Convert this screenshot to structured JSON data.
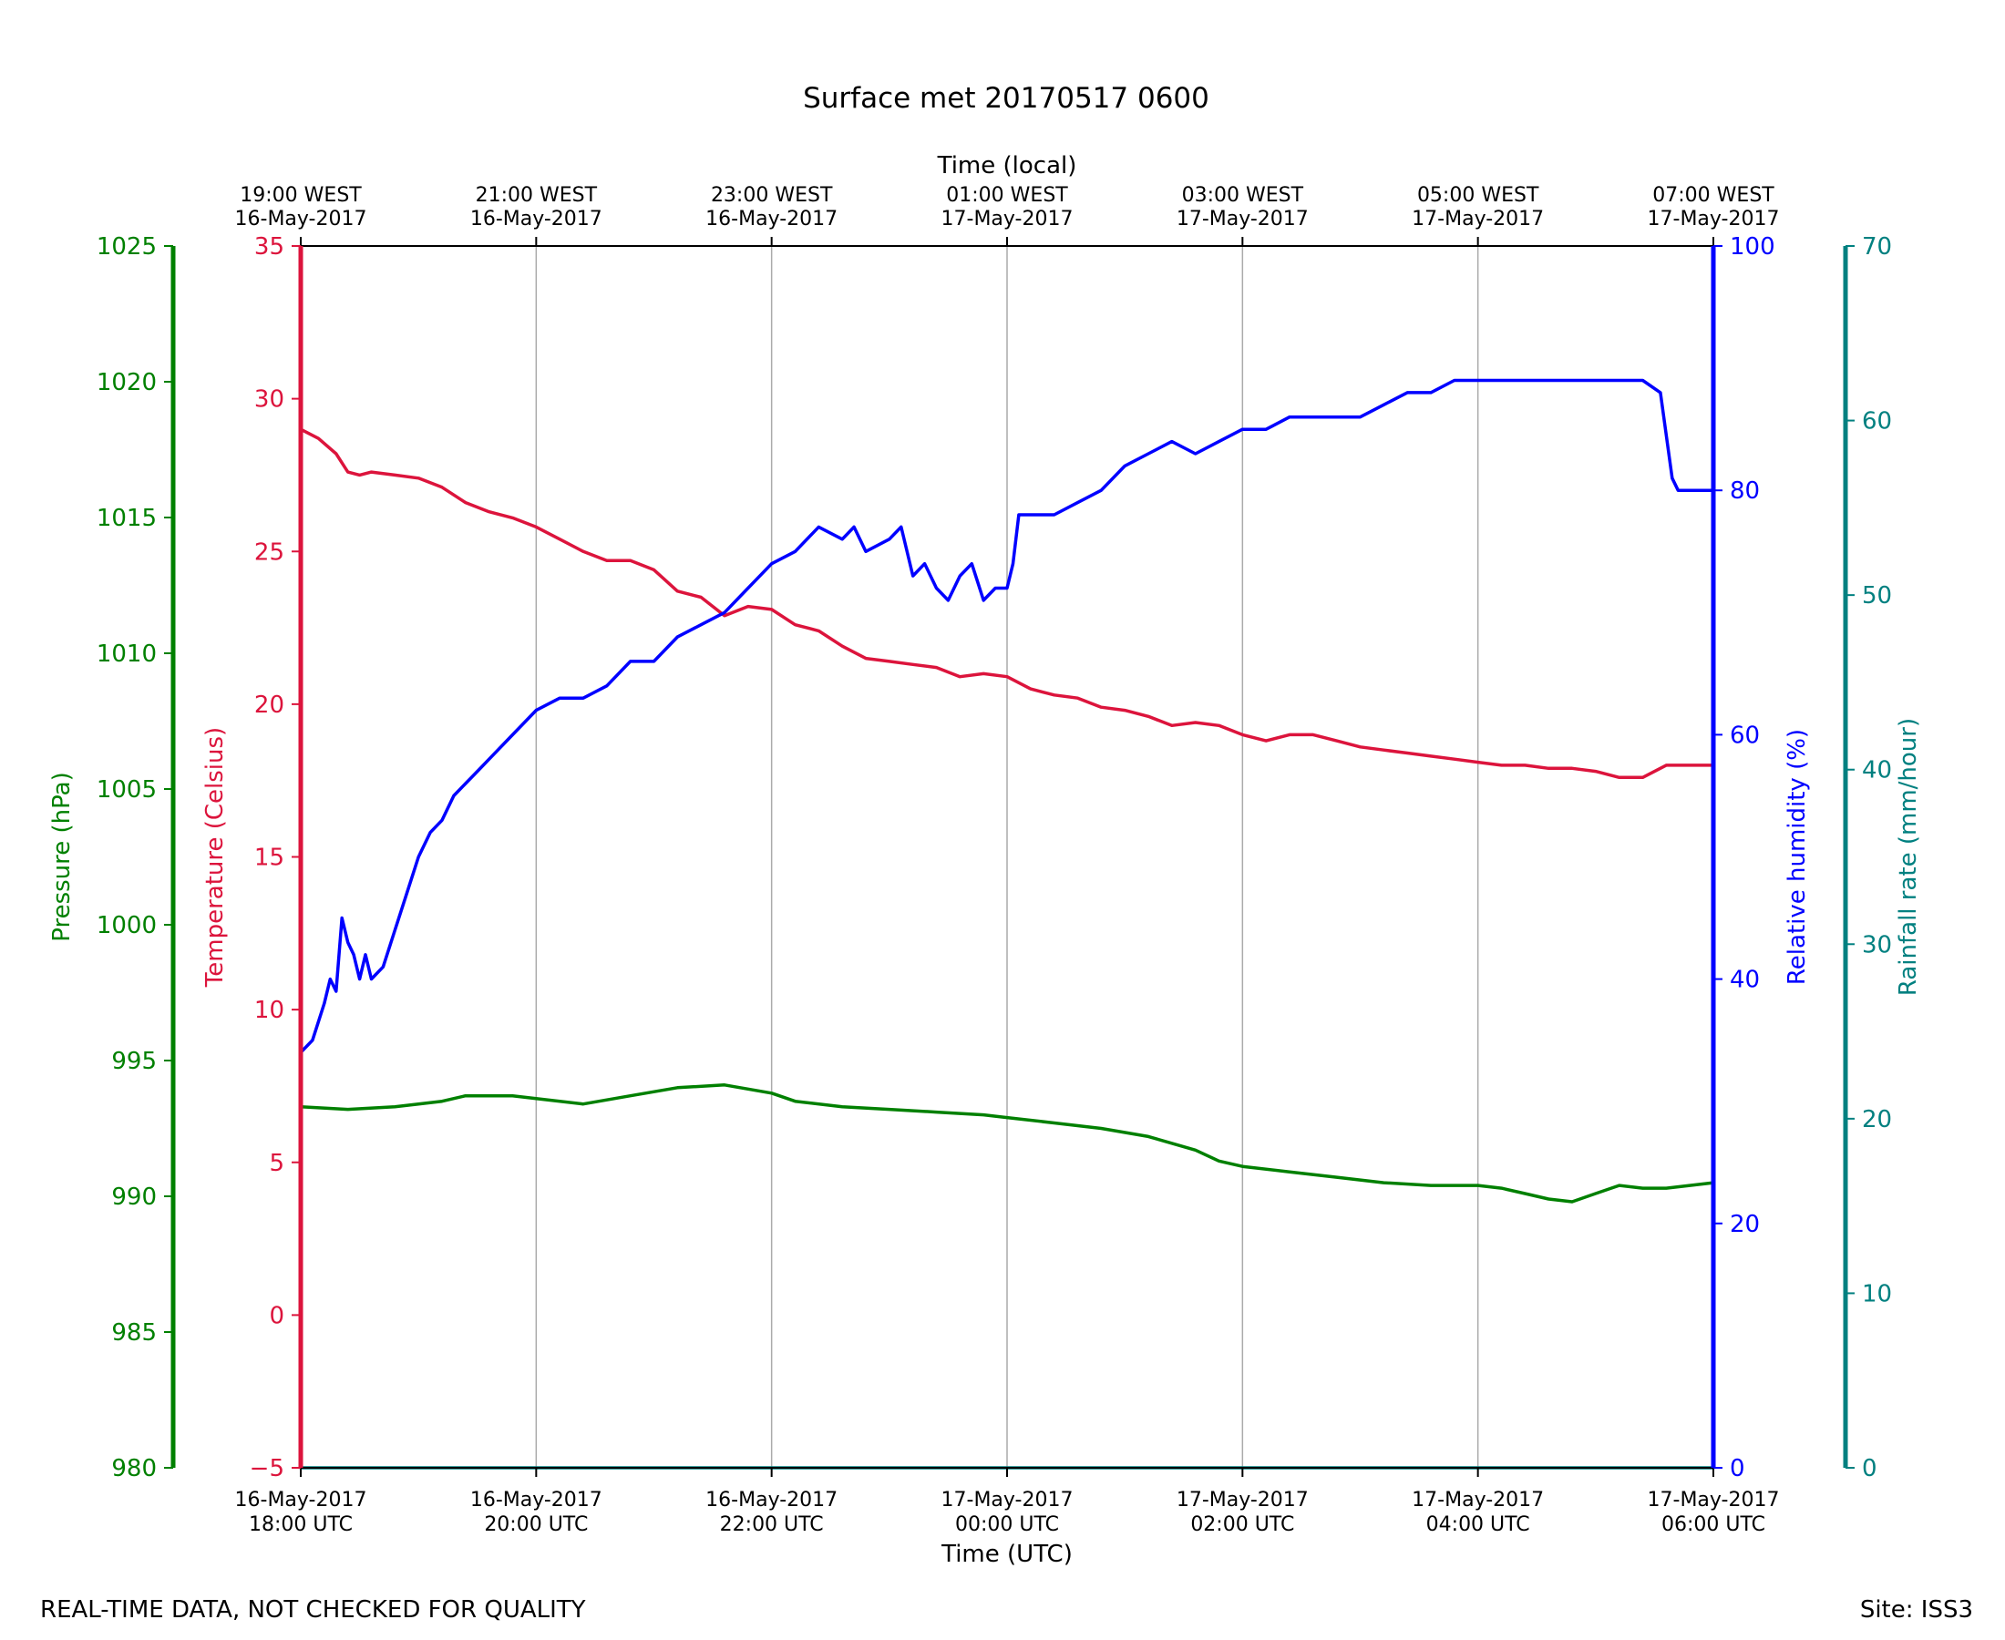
{
  "chart_data": {
    "type": "line",
    "title": "Surface met 20170517 0600",
    "footer_left": "REAL-TIME DATA, NOT CHECKED FOR QUALITY",
    "footer_right": "Site: ISS3",
    "x_bottom": {
      "label": "Time (UTC)",
      "range_hours": [
        0,
        12
      ],
      "ticks": [
        {
          "hour": 0,
          "line1": "16-May-2017",
          "line2": "18:00 UTC"
        },
        {
          "hour": 2,
          "line1": "16-May-2017",
          "line2": "20:00 UTC"
        },
        {
          "hour": 4,
          "line1": "16-May-2017",
          "line2": "22:00 UTC"
        },
        {
          "hour": 6,
          "line1": "17-May-2017",
          "line2": "00:00 UTC"
        },
        {
          "hour": 8,
          "line1": "17-May-2017",
          "line2": "02:00 UTC"
        },
        {
          "hour": 10,
          "line1": "17-May-2017",
          "line2": "04:00 UTC"
        },
        {
          "hour": 12,
          "line1": "17-May-2017",
          "line2": "06:00 UTC"
        }
      ]
    },
    "x_top": {
      "label": "Time (local)",
      "ticks": [
        {
          "hour": 0,
          "line1": "19:00 WEST",
          "line2": "16-May-2017"
        },
        {
          "hour": 2,
          "line1": "21:00 WEST",
          "line2": "16-May-2017"
        },
        {
          "hour": 4,
          "line1": "23:00 WEST",
          "line2": "16-May-2017"
        },
        {
          "hour": 6,
          "line1": "01:00 WEST",
          "line2": "17-May-2017"
        },
        {
          "hour": 8,
          "line1": "03:00 WEST",
          "line2": "17-May-2017"
        },
        {
          "hour": 10,
          "line1": "05:00 WEST",
          "line2": "17-May-2017"
        },
        {
          "hour": 12,
          "line1": "07:00 WEST",
          "line2": "17-May-2017"
        }
      ]
    },
    "axes": [
      {
        "id": "pressure",
        "label": "Pressure (hPa)",
        "color": "#008000",
        "ylim": [
          980,
          1025
        ],
        "ticks": [
          "980",
          "985",
          "990",
          "995",
          "1000",
          "1005",
          "1010",
          "1015",
          "1020",
          "1025"
        ],
        "tick_values": [
          980,
          985,
          990,
          995,
          1000,
          1005,
          1010,
          1015,
          1020,
          1025
        ]
      },
      {
        "id": "temperature",
        "label": "Temperature (Celsius)",
        "color": "#dc143c",
        "ylim": [
          -5,
          35
        ],
        "ticks": [
          "−5",
          "0",
          "5",
          "10",
          "15",
          "20",
          "25",
          "30",
          "35"
        ],
        "tick_values": [
          -5,
          0,
          5,
          10,
          15,
          20,
          25,
          30,
          35
        ]
      },
      {
        "id": "humidity",
        "label": "Relative humidity (%)",
        "color": "#0000ff",
        "ylim": [
          0,
          100
        ],
        "ticks": [
          "0",
          "20",
          "40",
          "60",
          "80",
          "100"
        ],
        "tick_values": [
          0,
          20,
          40,
          60,
          80,
          100
        ]
      },
      {
        "id": "rainfall",
        "label": "Rainfall rate (mm/hour)",
        "color": "#008080",
        "ylim": [
          0,
          70
        ],
        "ticks": [
          "0",
          "10",
          "20",
          "30",
          "40",
          "50",
          "60",
          "70"
        ],
        "tick_values": [
          0,
          10,
          20,
          30,
          40,
          50,
          60,
          70
        ]
      }
    ],
    "series": [
      {
        "name": "Temperature",
        "axis": "temperature",
        "color": "#dc143c",
        "x": [
          0,
          0.15,
          0.3,
          0.4,
          0.5,
          0.6,
          0.8,
          1.0,
          1.2,
          1.4,
          1.6,
          1.8,
          2.0,
          2.2,
          2.4,
          2.6,
          2.8,
          3.0,
          3.2,
          3.4,
          3.6,
          3.8,
          4.0,
          4.2,
          4.4,
          4.6,
          4.8,
          5.0,
          5.2,
          5.4,
          5.6,
          5.8,
          6.0,
          6.2,
          6.4,
          6.6,
          6.8,
          7.0,
          7.2,
          7.4,
          7.6,
          7.8,
          8.0,
          8.2,
          8.4,
          8.6,
          8.8,
          9.0,
          9.2,
          9.4,
          9.6,
          9.8,
          10.0,
          10.2,
          10.4,
          10.6,
          10.8,
          11.0,
          11.2,
          11.4,
          11.6,
          11.8,
          12.0
        ],
        "values": [
          29.0,
          28.7,
          28.2,
          27.6,
          27.5,
          27.6,
          27.5,
          27.4,
          27.1,
          26.6,
          26.3,
          26.1,
          25.8,
          25.4,
          25.0,
          24.7,
          24.7,
          24.4,
          23.7,
          23.5,
          22.9,
          23.2,
          23.1,
          22.6,
          22.4,
          21.9,
          21.5,
          21.4,
          21.3,
          21.2,
          20.9,
          21.0,
          20.9,
          20.5,
          20.3,
          20.2,
          19.9,
          19.8,
          19.6,
          19.3,
          19.4,
          19.3,
          19.0,
          18.8,
          19.0,
          19.0,
          18.8,
          18.6,
          18.5,
          18.4,
          18.3,
          18.2,
          18.1,
          18.0,
          18.0,
          17.9,
          17.9,
          17.8,
          17.6,
          17.6,
          18.0,
          18.0,
          18.0
        ]
      },
      {
        "name": "Relative humidity",
        "axis": "humidity",
        "color": "#0000ff",
        "x": [
          0,
          0.1,
          0.2,
          0.25,
          0.3,
          0.35,
          0.4,
          0.45,
          0.5,
          0.55,
          0.6,
          0.7,
          0.8,
          0.9,
          1.0,
          1.1,
          1.2,
          1.3,
          1.4,
          1.5,
          1.6,
          1.8,
          2.0,
          2.2,
          2.4,
          2.6,
          2.8,
          3.0,
          3.2,
          3.4,
          3.6,
          3.8,
          4.0,
          4.2,
          4.4,
          4.6,
          4.7,
          4.8,
          5.0,
          5.1,
          5.2,
          5.3,
          5.4,
          5.5,
          5.6,
          5.7,
          5.8,
          5.9,
          6.0,
          6.05,
          6.1,
          6.2,
          6.3,
          6.4,
          6.6,
          6.8,
          7.0,
          7.2,
          7.4,
          7.6,
          7.8,
          8.0,
          8.2,
          8.4,
          8.6,
          8.8,
          9.0,
          9.2,
          9.4,
          9.6,
          9.8,
          10.0,
          10.2,
          10.4,
          10.6,
          10.8,
          11.0,
          11.2,
          11.4,
          11.55,
          11.65,
          11.7,
          11.8,
          11.9,
          12.0
        ],
        "values": [
          34,
          35,
          38,
          40,
          39,
          45,
          43,
          42,
          40,
          42,
          40,
          41,
          44,
          47,
          50,
          52,
          53,
          55,
          56,
          57,
          58,
          60,
          62,
          63,
          63,
          64,
          66,
          66,
          68,
          69,
          70,
          72,
          74,
          75,
          77,
          76,
          77,
          75,
          76,
          77,
          73,
          74,
          72,
          71,
          73,
          74,
          71,
          72,
          72,
          74,
          78,
          78,
          78,
          78,
          79,
          80,
          82,
          83,
          84,
          83,
          84,
          85,
          85,
          86,
          86,
          86,
          86,
          87,
          88,
          88,
          89,
          89,
          89,
          89,
          89,
          89,
          89,
          89,
          89,
          88,
          81,
          80,
          80,
          80,
          80
        ]
      },
      {
        "name": "Pressure",
        "axis": "pressure",
        "color": "#008000",
        "x": [
          0,
          0.4,
          0.8,
          1.2,
          1.4,
          1.8,
          2.0,
          2.4,
          2.8,
          3.2,
          3.6,
          4.0,
          4.2,
          4.6,
          5.0,
          5.4,
          5.8,
          6.0,
          6.4,
          6.8,
          7.2,
          7.6,
          7.8,
          8.0,
          8.4,
          8.8,
          9.2,
          9.6,
          10.0,
          10.2,
          10.4,
          10.6,
          10.8,
          11.0,
          11.2,
          11.4,
          11.6,
          12.0
        ],
        "values": [
          993.3,
          993.2,
          993.3,
          993.5,
          993.7,
          993.7,
          993.6,
          993.4,
          993.7,
          994.0,
          994.1,
          993.8,
          993.5,
          993.3,
          993.2,
          993.1,
          993.0,
          992.9,
          992.7,
          992.5,
          992.2,
          991.7,
          991.3,
          991.1,
          990.9,
          990.7,
          990.5,
          990.4,
          990.4,
          990.3,
          990.1,
          989.9,
          989.8,
          990.1,
          990.4,
          990.3,
          990.3,
          990.5
        ]
      },
      {
        "name": "Rainfall rate",
        "axis": "rainfall",
        "color": "#008080",
        "x": [
          0,
          12
        ],
        "values": [
          0,
          0
        ]
      }
    ]
  }
}
